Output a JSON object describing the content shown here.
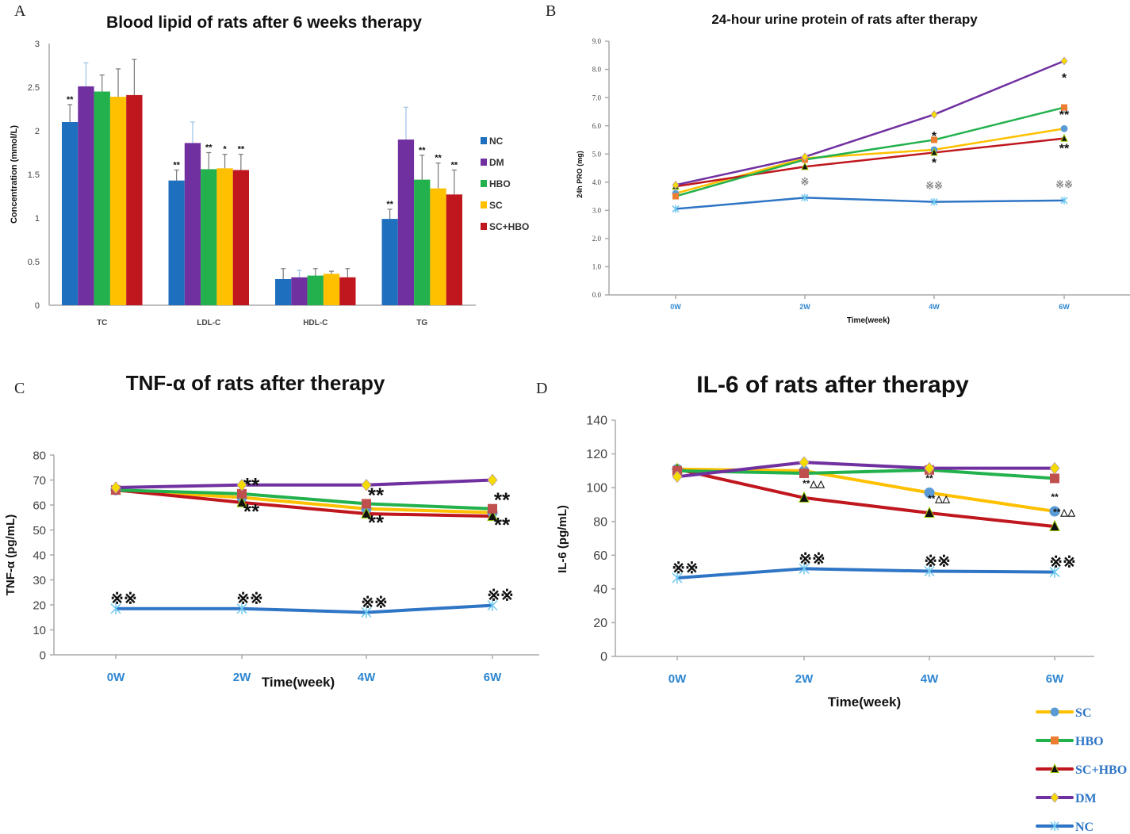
{
  "colors": {
    "NC": "#1f6fbf",
    "DM": "#7030a0",
    "HBO": "#22b14c",
    "SC": "#ffc000",
    "SC+HBO": "#c0161d",
    "NC_line": "#2e75c5",
    "marker_SC": "#5b9bd5",
    "marker_HBO": "#ed7d31",
    "marker_HBO_CD": "#c0504d",
    "marker_SCHBO": "#111111",
    "marker_DM": "#f5dc00",
    "marker_NC": "#6fc8f0"
  },
  "chart_data": [
    {
      "panel": "A",
      "type": "bar",
      "title": "Blood lipid of rats after 6 weeks  therapy",
      "ylabel": "Concentration (mmol/L)",
      "xlabel": "",
      "ylim": [
        0,
        3
      ],
      "yticks": [
        "0",
        "0.5",
        "1",
        "1.5",
        "2",
        "2.5",
        "3"
      ],
      "grid": false,
      "legend": "right",
      "categories": [
        "TC",
        "LDL-C",
        "HDL-C",
        "TG"
      ],
      "series": [
        {
          "name": "NC",
          "values": [
            2.1,
            1.43,
            0.3,
            0.99
          ],
          "error_top": [
            2.3,
            1.55,
            0.42,
            1.1
          ],
          "annot": [
            "**",
            "**",
            "",
            "**"
          ]
        },
        {
          "name": "DM",
          "values": [
            2.51,
            1.86,
            0.32,
            1.9
          ],
          "error_top": [
            2.78,
            2.1,
            0.4,
            2.27
          ],
          "annot": [
            "",
            "",
            "",
            ""
          ]
        },
        {
          "name": "HBO",
          "values": [
            2.45,
            1.56,
            0.34,
            1.44
          ],
          "error_top": [
            2.64,
            1.75,
            0.42,
            1.72
          ],
          "annot": [
            "",
            "**",
            "",
            "**"
          ]
        },
        {
          "name": "SC",
          "values": [
            2.39,
            1.57,
            0.36,
            1.34
          ],
          "error_top": [
            2.71,
            1.73,
            0.39,
            1.63
          ],
          "annot": [
            "",
            "*",
            "",
            "**"
          ]
        },
        {
          "name": "SC+HBO",
          "values": [
            2.41,
            1.55,
            0.32,
            1.27
          ],
          "error_top": [
            2.82,
            1.73,
            0.42,
            1.55
          ],
          "annot": [
            "",
            "**",
            "",
            "**"
          ]
        }
      ]
    },
    {
      "panel": "B",
      "type": "line",
      "title": "24-hour urine protein of rats after therapy",
      "ylabel": "24h PRO (mg)",
      "xlabel": "Time(week)",
      "ylim": [
        0,
        9
      ],
      "yticks": [
        "0.0",
        "1.0",
        "2.0",
        "3.0",
        "4.0",
        "5.0",
        "6.0",
        "7.0",
        "8.0",
        "9.0"
      ],
      "categories": [
        "0W",
        "2W",
        "4W",
        "6W"
      ],
      "grid": false,
      "series": [
        {
          "key": "DM",
          "values": [
            3.9,
            4.9,
            6.4,
            8.3
          ],
          "annot": [
            "",
            "",
            "",
            ""
          ]
        },
        {
          "key": "HBO",
          "values": [
            3.5,
            4.8,
            5.5,
            6.65
          ],
          "annot": [
            "",
            "",
            "",
            "*"
          ]
        },
        {
          "key": "SC",
          "values": [
            3.6,
            4.85,
            5.15,
            5.9
          ],
          "annot": [
            "",
            "",
            "*",
            "**"
          ]
        },
        {
          "key": "SC+HBO",
          "values": [
            3.85,
            4.55,
            5.05,
            5.55
          ],
          "annot": [
            "",
            "",
            "*",
            "**"
          ]
        },
        {
          "key": "NC",
          "values": [
            3.05,
            3.45,
            3.3,
            3.35
          ],
          "annot": [
            "",
            "※",
            "※※",
            "※※"
          ]
        }
      ]
    },
    {
      "panel": "C",
      "type": "line",
      "title": "TNF-α of rats after therapy",
      "ylabel": "TNF-α (pg/mL)",
      "xlabel": "Time(week)",
      "ylim": [
        0,
        80
      ],
      "yticks": [
        "0",
        "10",
        "20",
        "30",
        "40",
        "50",
        "60",
        "70",
        "80"
      ],
      "categories": [
        "0W",
        "2W",
        "4W",
        "6W"
      ],
      "grid": false,
      "series": [
        {
          "key": "DM",
          "values": [
            67,
            68,
            68,
            70
          ],
          "annot": [
            "",
            "",
            "",
            ""
          ]
        },
        {
          "key": "HBO",
          "values": [
            66,
            64.5,
            60.5,
            58.5
          ],
          "annot": [
            "",
            "**",
            "**",
            "**"
          ]
        },
        {
          "key": "SC",
          "values": [
            66,
            63,
            58.5,
            57
          ],
          "annot": [
            "",
            "",
            "",
            ""
          ]
        },
        {
          "key": "SC+HBO",
          "values": [
            66,
            61,
            56.5,
            55.5
          ],
          "annot": [
            "",
            "**",
            "**",
            "**"
          ]
        },
        {
          "key": "NC",
          "values": [
            18.5,
            18.5,
            17,
            19.8
          ],
          "annot": [
            "※※",
            "※※",
            "※※",
            "※※"
          ]
        }
      ]
    },
    {
      "panel": "D",
      "type": "line",
      "title": "IL-6 of rats after therapy",
      "ylabel": "IL-6 (pg/mL)",
      "xlabel": "Time(week)",
      "ylim": [
        0,
        140
      ],
      "yticks": [
        "0",
        "20",
        "40",
        "60",
        "80",
        "100",
        "120",
        "140"
      ],
      "categories": [
        "0W",
        "2W",
        "4W",
        "6W"
      ],
      "grid": false,
      "legend": "bottom-right",
      "legend_labels": [
        "SC",
        "HBO",
        "SC+HBO",
        "DM",
        "NC"
      ],
      "series": [
        {
          "key": "SC",
          "values": [
            111,
            110,
            97,
            86
          ],
          "annot": [
            "",
            "",
            "**",
            "**"
          ]
        },
        {
          "key": "HBO",
          "values": [
            110,
            108.5,
            110.5,
            105.5
          ],
          "annot": [
            "",
            "",
            "",
            ""
          ]
        },
        {
          "key": "SC+HBO",
          "values": [
            111,
            94,
            85,
            77
          ],
          "annot": [
            "",
            "**△△",
            "**△△",
            "**△△"
          ]
        },
        {
          "key": "DM",
          "values": [
            106.5,
            115,
            111.5,
            111.5
          ],
          "annot": [
            "",
            "",
            "",
            ""
          ]
        },
        {
          "key": "NC",
          "values": [
            46.5,
            52,
            50.5,
            50
          ],
          "annot": [
            "※※",
            "※※",
            "※※",
            "※※"
          ]
        }
      ]
    }
  ],
  "panel_labels": [
    "A",
    "B",
    "C",
    "D"
  ]
}
